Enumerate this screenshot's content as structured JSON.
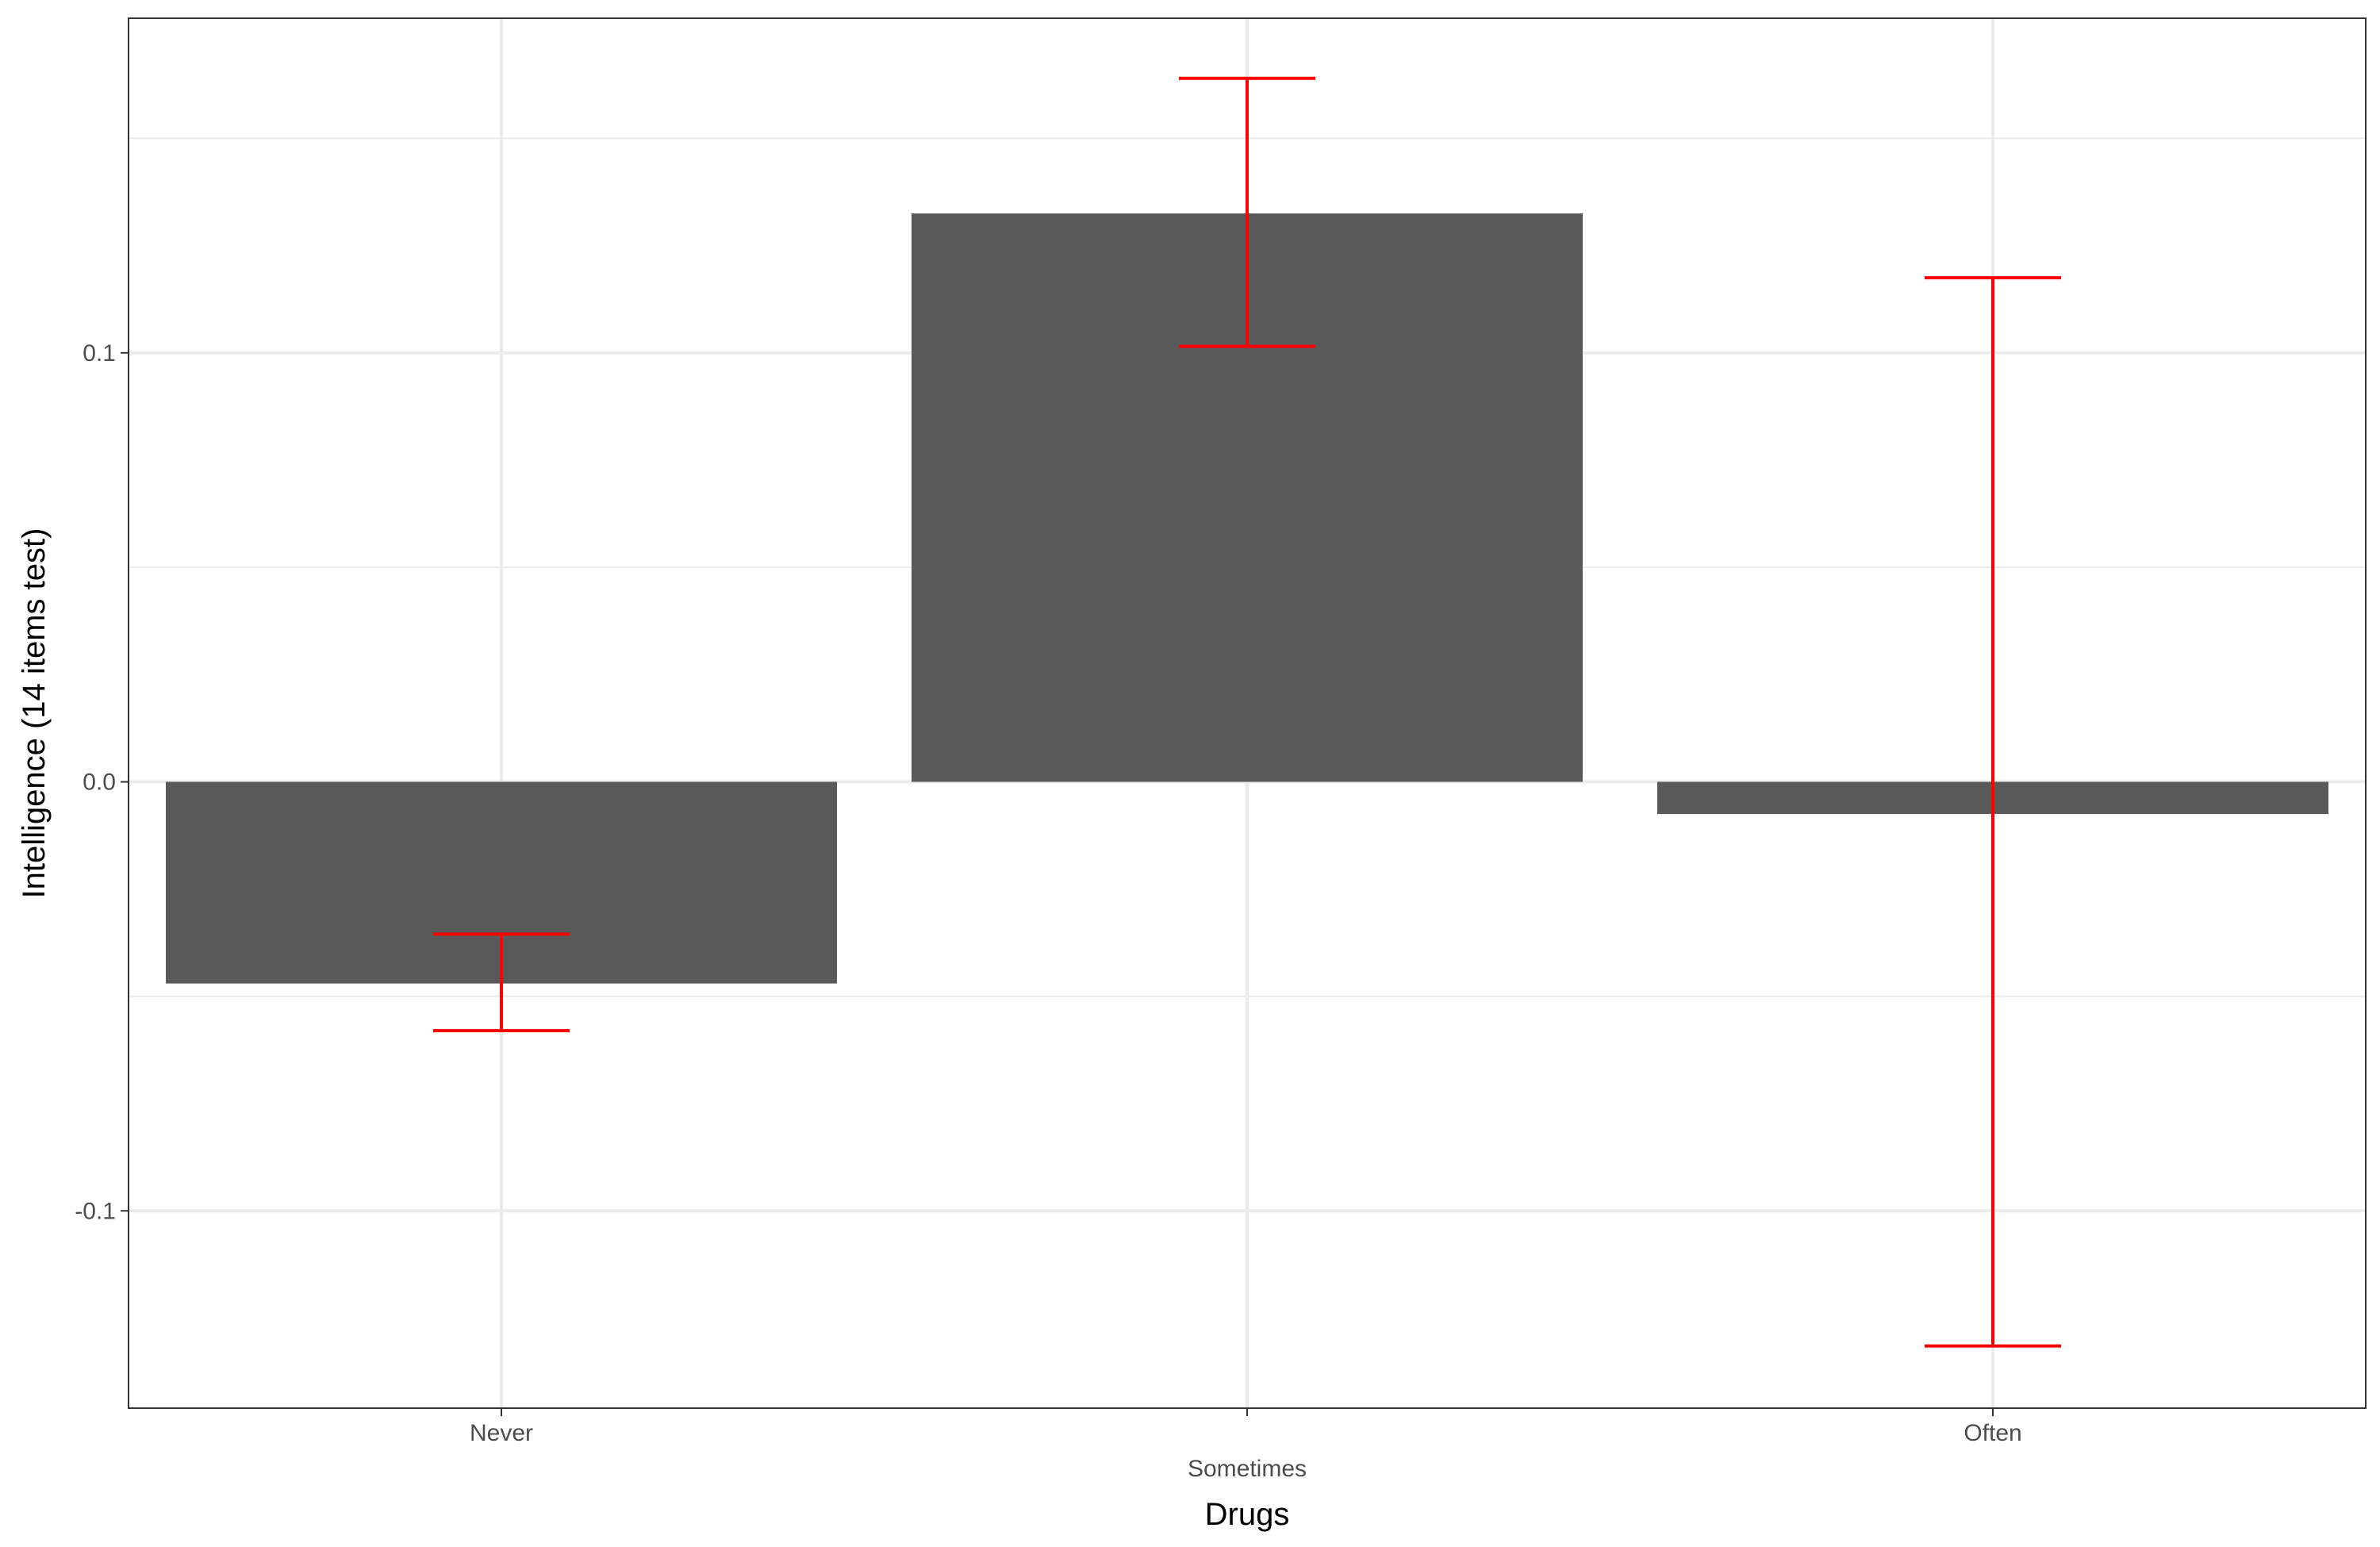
{
  "chart_data": {
    "type": "bar",
    "categories": [
      "Never",
      "Sometimes",
      "Often"
    ],
    "values": [
      -0.047,
      0.1325,
      -0.0075
    ],
    "error_bars": [
      {
        "low": -0.058,
        "high": -0.0355
      },
      {
        "low": 0.1015,
        "high": 0.164
      },
      {
        "low": -0.1315,
        "high": 0.1175
      }
    ],
    "xlabel": "Drugs",
    "ylabel": "Intelligence (14 items test)",
    "ylim": [
      -0.146,
      0.178
    ],
    "yticks": [
      -0.1,
      0.0,
      0.1
    ],
    "ytick_labels": [
      "-0.1",
      "0.0",
      "0.1"
    ],
    "grid": true,
    "colors": {
      "bar": "#595959",
      "error_bar": "#ff0000",
      "grid": "#ebebeb",
      "panel_border": "#333333"
    }
  }
}
